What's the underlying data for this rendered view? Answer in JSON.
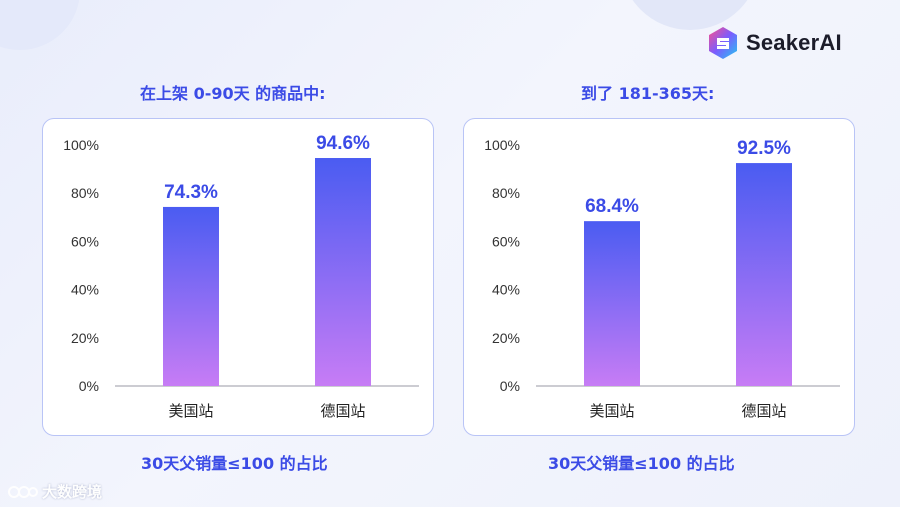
{
  "brand": {
    "name": "SeakerAI"
  },
  "watermark": {
    "text": "大数跨境"
  },
  "colors": {
    "accent": "#3b4be6",
    "bar_top": "#4a5cf2",
    "bar_bottom": "#c77cf5",
    "label": "#3b4be6"
  },
  "chart_data": [
    {
      "type": "bar",
      "title": "在上架 0-90天 的商品中:",
      "caption": "30天父销量≤100 的占比",
      "categories": [
        "美国站",
        "德国站"
      ],
      "values": [
        74.3,
        94.6
      ],
      "value_labels": [
        "74.3%",
        "94.6%"
      ],
      "ylim": [
        0,
        100
      ],
      "yticks": [
        "0%",
        "20%",
        "40%",
        "60%",
        "80%",
        "100%"
      ],
      "grid": false
    },
    {
      "type": "bar",
      "title": "到了 181-365天:",
      "caption": "30天父销量≤100 的占比",
      "categories": [
        "美国站",
        "德国站"
      ],
      "values": [
        68.4,
        92.5
      ],
      "value_labels": [
        "68.4%",
        "92.5%"
      ],
      "ylim": [
        0,
        100
      ],
      "yticks": [
        "0%",
        "20%",
        "40%",
        "60%",
        "80%",
        "100%"
      ],
      "grid": false
    }
  ]
}
